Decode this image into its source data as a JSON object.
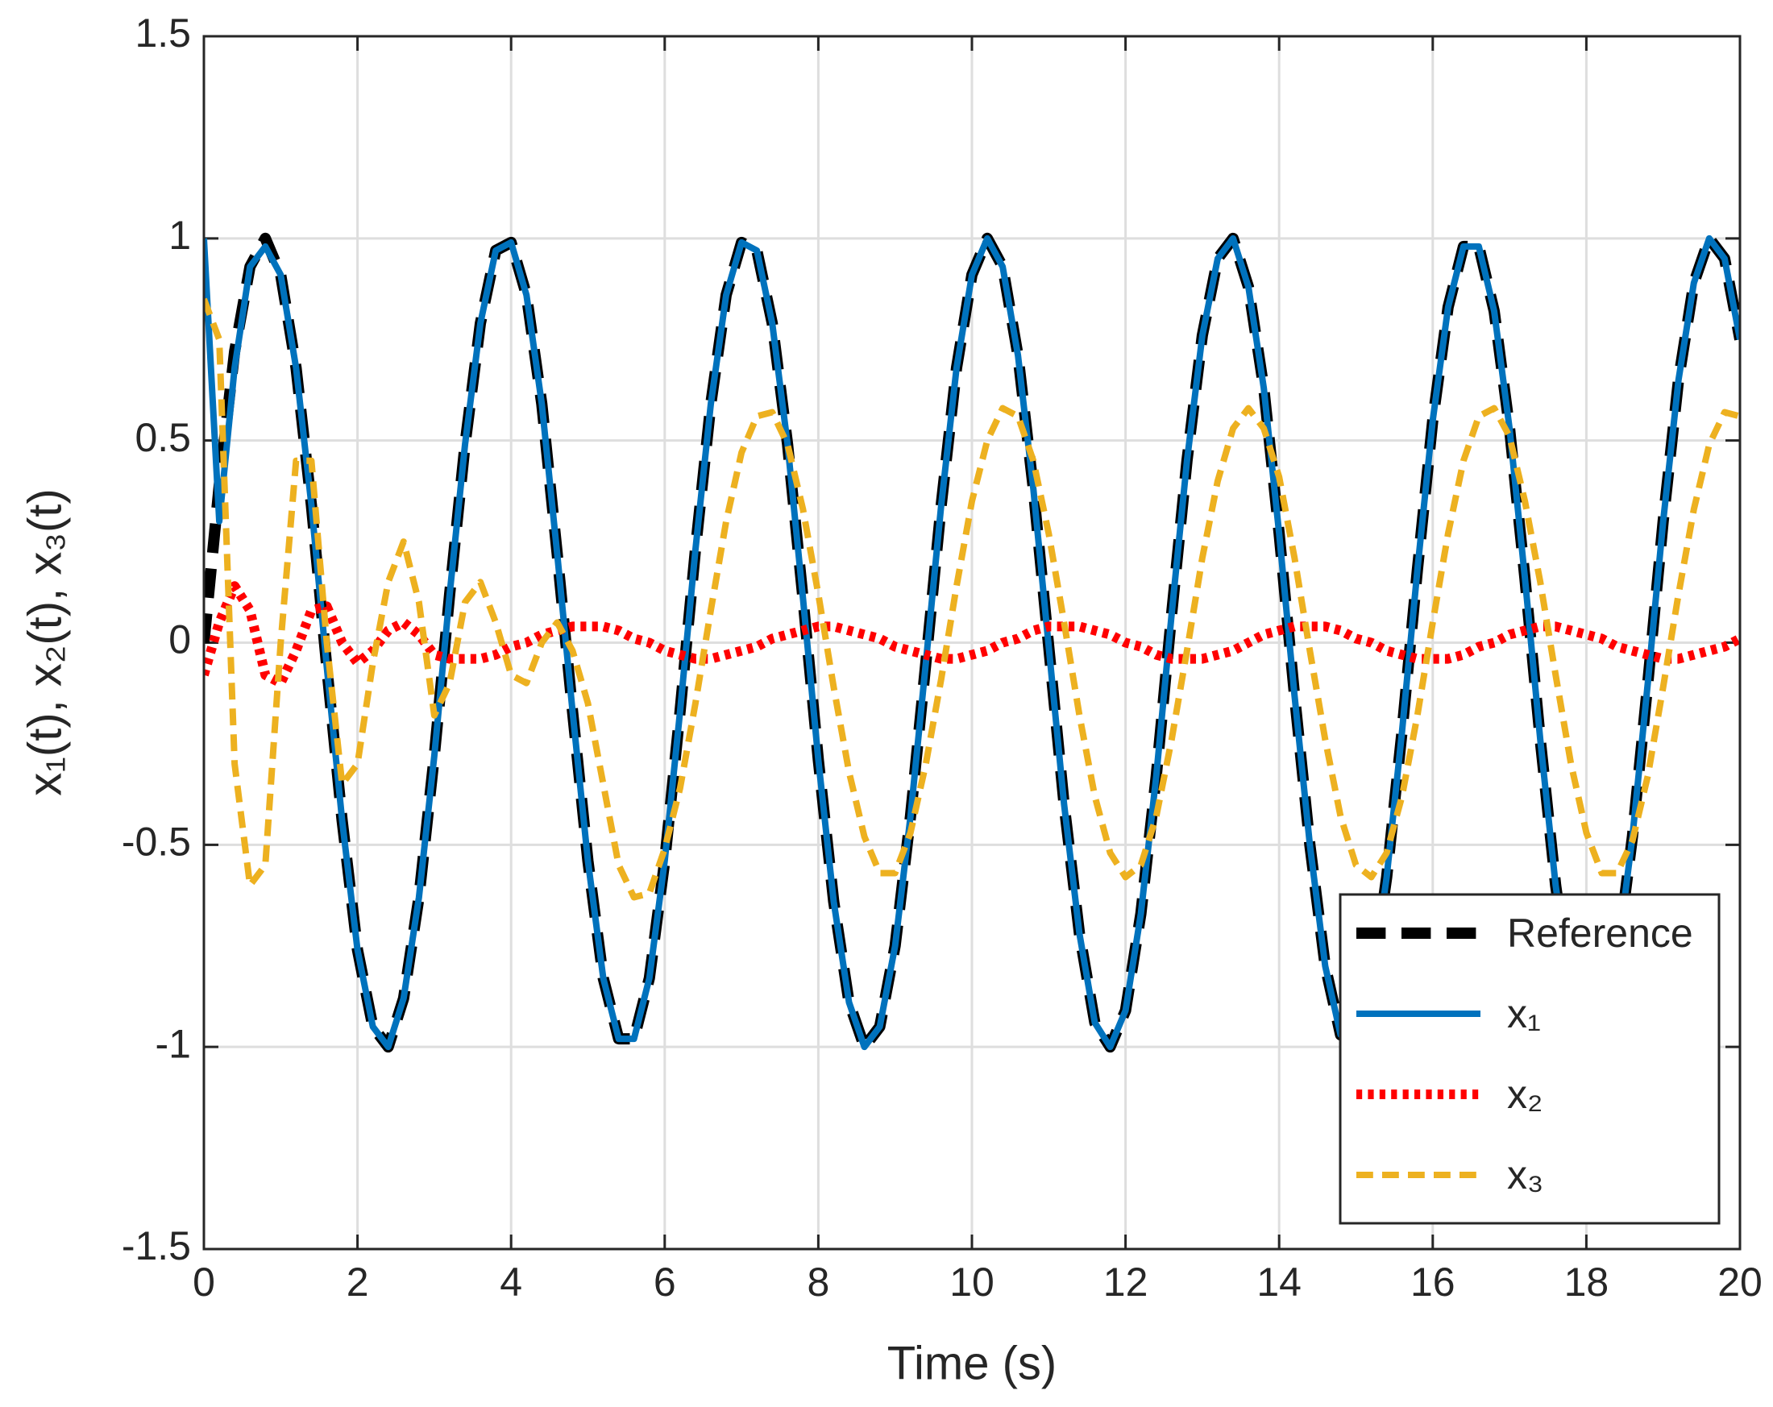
{
  "chart_data": {
    "type": "line",
    "xlabel": "Time (s)",
    "ylabel": "x₁(t), x₂(t), x₃(t)",
    "x": [
      0,
      0.2,
      0.4,
      0.6,
      0.8,
      1.0,
      1.2,
      1.4,
      1.6,
      1.8,
      2.0,
      2.2,
      2.4,
      2.6,
      2.8,
      3.0,
      3.2,
      3.4,
      3.6,
      3.8,
      4.0,
      4.2,
      4.4,
      4.6,
      4.8,
      5.0,
      5.2,
      5.4,
      5.6,
      5.8,
      6.0,
      6.2,
      6.4,
      6.6,
      6.8,
      7.0,
      7.2,
      7.4,
      7.6,
      7.8,
      8.0,
      8.2,
      8.4,
      8.6,
      8.8,
      9.0,
      9.2,
      9.4,
      9.6,
      9.8,
      10.0,
      10.2,
      10.4,
      10.6,
      10.8,
      11.0,
      11.2,
      11.4,
      11.6,
      11.8,
      12.0,
      12.2,
      12.4,
      12.6,
      12.8,
      13.0,
      13.2,
      13.4,
      13.6,
      13.8,
      14.0,
      14.2,
      14.4,
      14.6,
      14.8,
      15.0,
      15.2,
      15.4,
      15.6,
      15.8,
      16.0,
      16.2,
      16.4,
      16.6,
      16.8,
      17.0,
      17.2,
      17.4,
      17.6,
      17.8,
      18.0,
      18.2,
      18.4,
      18.6,
      18.8,
      19.0,
      19.2,
      19.4,
      19.6,
      19.8,
      20.0
    ],
    "series": [
      {
        "name": "Reference",
        "color": "#000000",
        "dash": "dashed",
        "width": 14,
        "values": [
          0,
          0.39,
          0.72,
          0.93,
          1.0,
          0.91,
          0.68,
          0.34,
          -0.06,
          -0.44,
          -0.76,
          -0.95,
          -1.0,
          -0.88,
          -0.63,
          -0.28,
          0.12,
          0.49,
          0.79,
          0.97,
          0.99,
          0.86,
          0.59,
          0.22,
          -0.17,
          -0.54,
          -0.83,
          -0.98,
          -0.98,
          -0.83,
          -0.54,
          -0.17,
          0.23,
          0.59,
          0.86,
          0.99,
          0.97,
          0.79,
          0.49,
          0.11,
          -0.29,
          -0.64,
          -0.89,
          -1.0,
          -0.95,
          -0.75,
          -0.43,
          -0.05,
          0.34,
          0.68,
          0.91,
          1.0,
          0.93,
          0.71,
          0.38,
          -0.01,
          -0.4,
          -0.72,
          -0.94,
          -1.0,
          -0.91,
          -0.67,
          -0.33,
          0.07,
          0.45,
          0.76,
          0.95,
          1.0,
          0.88,
          0.63,
          0.27,
          -0.13,
          -0.5,
          -0.8,
          -0.97,
          -0.99,
          -0.85,
          -0.58,
          -0.22,
          0.18,
          0.55,
          0.83,
          0.98,
          0.98,
          0.82,
          0.53,
          0.16,
          -0.24,
          -0.6,
          -0.87,
          -0.99,
          -0.96,
          -0.78,
          -0.48,
          -0.1,
          0.3,
          0.65,
          0.89,
          1.0,
          0.95,
          0.75
        ]
      },
      {
        "name": "x₁",
        "color": "#0072bd",
        "dash": "solid",
        "width": 8,
        "values": [
          1.0,
          0.3,
          0.68,
          0.93,
          0.98,
          0.91,
          0.68,
          0.34,
          -0.06,
          -0.44,
          -0.76,
          -0.95,
          -1.0,
          -0.88,
          -0.63,
          -0.28,
          0.12,
          0.49,
          0.79,
          0.97,
          0.99,
          0.86,
          0.59,
          0.22,
          -0.17,
          -0.54,
          -0.83,
          -0.98,
          -0.98,
          -0.83,
          -0.54,
          -0.17,
          0.23,
          0.59,
          0.86,
          0.99,
          0.97,
          0.79,
          0.49,
          0.11,
          -0.29,
          -0.64,
          -0.89,
          -1.0,
          -0.95,
          -0.75,
          -0.43,
          -0.05,
          0.34,
          0.68,
          0.91,
          1.0,
          0.93,
          0.71,
          0.38,
          -0.01,
          -0.4,
          -0.72,
          -0.94,
          -1.0,
          -0.91,
          -0.67,
          -0.33,
          0.07,
          0.45,
          0.76,
          0.95,
          1.0,
          0.88,
          0.63,
          0.27,
          -0.13,
          -0.5,
          -0.8,
          -0.97,
          -0.99,
          -0.85,
          -0.58,
          -0.22,
          0.18,
          0.55,
          0.83,
          0.98,
          0.98,
          0.82,
          0.53,
          0.16,
          -0.24,
          -0.6,
          -0.87,
          -0.99,
          -0.96,
          -0.78,
          -0.48,
          -0.1,
          0.3,
          0.65,
          0.89,
          1.0,
          0.95,
          0.75
        ]
      },
      {
        "name": "x₂",
        "color": "#ff0000",
        "dash": "dotted",
        "width": 12,
        "values": [
          -0.08,
          0.05,
          0.14,
          0.08,
          -0.08,
          -0.1,
          -0.02,
          0.08,
          0.09,
          0.0,
          -0.05,
          -0.02,
          0.03,
          0.05,
          0.02,
          -0.03,
          -0.04,
          -0.04,
          -0.04,
          -0.03,
          -0.01,
          0.0,
          0.02,
          0.03,
          0.04,
          0.04,
          0.04,
          0.03,
          0.01,
          0.0,
          -0.02,
          -0.03,
          -0.04,
          -0.04,
          -0.03,
          -0.02,
          -0.01,
          0.01,
          0.02,
          0.03,
          0.04,
          0.04,
          0.03,
          0.02,
          0.01,
          -0.01,
          -0.02,
          -0.03,
          -0.04,
          -0.04,
          -0.03,
          -0.02,
          0.0,
          0.01,
          0.03,
          0.04,
          0.04,
          0.04,
          0.03,
          0.02,
          0.0,
          -0.01,
          -0.03,
          -0.04,
          -0.04,
          -0.04,
          -0.03,
          -0.02,
          0.0,
          0.02,
          0.03,
          0.04,
          0.04,
          0.04,
          0.03,
          0.01,
          0.0,
          -0.02,
          -0.03,
          -0.04,
          -0.04,
          -0.04,
          -0.03,
          -0.01,
          0.0,
          0.02,
          0.03,
          0.04,
          0.04,
          0.03,
          0.02,
          0.01,
          -0.01,
          -0.02,
          -0.03,
          -0.04,
          -0.04,
          -0.03,
          -0.02,
          -0.01,
          0.01
        ]
      },
      {
        "name": "x₃",
        "color": "#edb120",
        "dash": "dashed",
        "width": 8,
        "values": [
          0.85,
          0.75,
          -0.3,
          -0.6,
          -0.55,
          0.0,
          0.45,
          0.45,
          0.0,
          -0.35,
          -0.3,
          -0.05,
          0.15,
          0.25,
          0.1,
          -0.18,
          -0.1,
          0.1,
          0.15,
          0.05,
          -0.08,
          -0.1,
          0.0,
          0.05,
          -0.02,
          -0.15,
          -0.35,
          -0.55,
          -0.63,
          -0.62,
          -0.51,
          -0.36,
          -0.15,
          0.08,
          0.3,
          0.47,
          0.56,
          0.57,
          0.49,
          0.33,
          0.12,
          -0.11,
          -0.32,
          -0.48,
          -0.57,
          -0.57,
          -0.47,
          -0.3,
          -0.09,
          0.14,
          0.35,
          0.5,
          0.58,
          0.56,
          0.45,
          0.27,
          0.05,
          -0.18,
          -0.38,
          -0.52,
          -0.58,
          -0.55,
          -0.43,
          -0.24,
          -0.02,
          0.21,
          0.4,
          0.53,
          0.58,
          0.53,
          0.41,
          0.21,
          -0.02,
          -0.24,
          -0.43,
          -0.55,
          -0.58,
          -0.52,
          -0.38,
          -0.18,
          0.05,
          0.27,
          0.45,
          0.56,
          0.58,
          0.51,
          0.35,
          0.15,
          -0.08,
          -0.3,
          -0.47,
          -0.57,
          -0.57,
          -0.49,
          -0.33,
          -0.11,
          0.12,
          0.33,
          0.49,
          0.57,
          0.56
        ]
      }
    ],
    "xlim": [
      0,
      20
    ],
    "xticks": [
      0,
      2,
      4,
      6,
      8,
      10,
      12,
      14,
      16,
      18,
      20
    ],
    "ylim": [
      -1.5,
      1.5
    ],
    "yticks": [
      -1.5,
      -1,
      -0.5,
      0,
      0.5,
      1,
      1.5
    ],
    "grid": true,
    "legend": "lower right"
  }
}
